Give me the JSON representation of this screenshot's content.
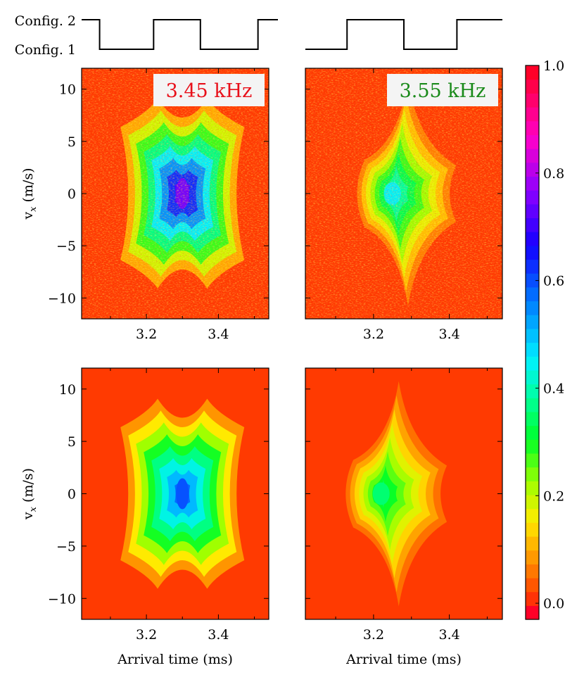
{
  "chart_data": [
    {
      "type": "heatmap",
      "panel": "top-left",
      "label": "3.45 kHz",
      "label_color": "#e8101a",
      "xlabel": "",
      "ylabel": "v",
      "ylabel_sub": "x",
      "ylabel_unit": " (m/s)",
      "xlim": [
        3.02,
        3.54
      ],
      "ylim": [
        -12,
        12
      ],
      "xticks": [
        3.2,
        3.4
      ],
      "xtick_labels": [
        "3.2",
        "3.4"
      ],
      "yticks": [
        -10,
        -5,
        0,
        5,
        10
      ],
      "ytick_labels": [
        "−10",
        "−5",
        "0",
        "5",
        "10"
      ],
      "peak": {
        "x": 3.3,
        "y": 0,
        "value": 0.75
      },
      "noisy": true
    },
    {
      "type": "heatmap",
      "panel": "top-right",
      "label": "3.55 kHz",
      "label_color": "#1a8a1a",
      "xlabel": "",
      "ylabel": "",
      "xlim": [
        3.02,
        3.54
      ],
      "ylim": [
        -12,
        12
      ],
      "xticks": [
        3.2,
        3.4
      ],
      "xtick_labels": [
        "3.2",
        "3.4"
      ],
      "peak": {
        "x": 3.25,
        "y": 0,
        "value": 0.45
      },
      "noisy": true
    },
    {
      "type": "heatmap",
      "panel": "bottom-left",
      "xlabel": "Arrival time (ms)",
      "ylabel": "v",
      "ylabel_sub": "x",
      "ylabel_unit": " (m/s)",
      "xlim": [
        3.02,
        3.54
      ],
      "ylim": [
        -12,
        12
      ],
      "xticks": [
        3.2,
        3.4
      ],
      "xtick_labels": [
        "3.2",
        "3.4"
      ],
      "yticks": [
        -10,
        -5,
        0,
        5,
        10
      ],
      "ytick_labels": [
        "−10",
        "−5",
        "0",
        "5",
        "10"
      ],
      "peak": {
        "x": 3.3,
        "y": 0,
        "value": 0.6
      },
      "noisy": false
    },
    {
      "type": "heatmap",
      "panel": "bottom-right",
      "xlabel": "Arrival time (ms)",
      "ylabel": "",
      "xlim": [
        3.02,
        3.54
      ],
      "ylim": [
        -12,
        12
      ],
      "xticks": [
        3.2,
        3.4
      ],
      "xtick_labels": [
        "3.2",
        "3.4"
      ],
      "peak": {
        "x": 3.22,
        "y": 0,
        "value": 0.35
      },
      "noisy": false
    }
  ],
  "pulse_traces": [
    {
      "panel": "left",
      "x_range": [
        3.02,
        3.54
      ],
      "transitions": [
        3.07,
        3.22,
        3.35,
        3.51
      ],
      "start_high": true
    },
    {
      "panel": "right",
      "x_range": [
        3.02,
        3.54
      ],
      "transitions": [
        3.13,
        3.28,
        3.42
      ],
      "start_high": false
    }
  ],
  "pulse_labels": {
    "high": "Config. 2",
    "low": "Config. 1"
  },
  "colorbar": {
    "range": [
      -0.03,
      1.0
    ],
    "ticks": [
      0.0,
      0.2,
      0.4,
      0.6,
      0.8,
      1.0
    ],
    "tick_labels": [
      "0.0",
      "0.2",
      "0.4",
      "0.6",
      "0.8",
      "1.0"
    ],
    "colormap": "gist_rainbow_r"
  }
}
